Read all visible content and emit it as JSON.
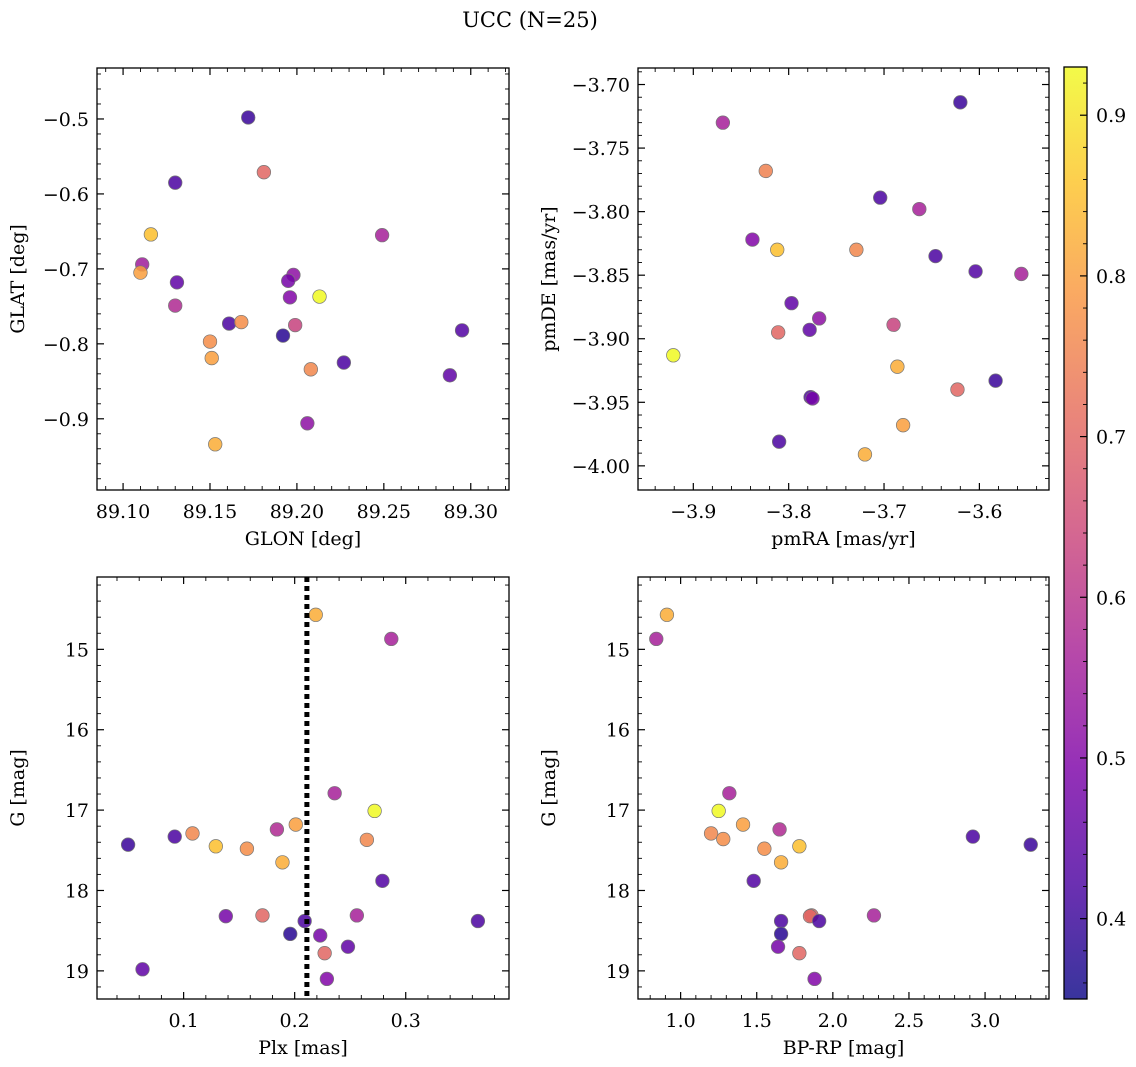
{
  "title": "UCC (N=25)",
  "colorbar": {
    "cmap": "plasma",
    "vmin": 0.35,
    "vmax": 0.93,
    "ticks": [
      0.4,
      0.5,
      0.6,
      0.7,
      0.8,
      0.9
    ],
    "tick_labels": [
      "0.4",
      "0.5",
      "0.6",
      "0.7",
      "0.8",
      "0.9"
    ]
  },
  "chart_data": [
    {
      "type": "scatter",
      "xlabel": "GLON [deg]",
      "ylabel": "GLAT [deg]",
      "xlim": [
        89.085,
        89.322
      ],
      "ylim": [
        -0.995,
        -0.432
      ],
      "xticks": [
        89.1,
        89.15,
        89.2,
        89.25,
        89.3
      ],
      "xtick_labels": [
        "89.10",
        "89.15",
        "89.20",
        "89.25",
        "89.30"
      ],
      "yticks": [
        -0.9,
        -0.8,
        -0.7,
        -0.6,
        -0.5
      ],
      "ytick_labels": [
        "−0.9",
        "−0.8",
        "−0.7",
        "−0.6",
        "−0.5"
      ],
      "x": [
        89.172,
        89.181,
        89.13,
        89.116,
        89.111,
        89.11,
        89.131,
        89.13,
        89.249,
        89.198,
        89.195,
        89.196,
        89.213,
        89.161,
        89.168,
        89.199,
        89.192,
        89.15,
        89.151,
        89.227,
        89.208,
        89.295,
        89.288,
        89.206,
        89.153
      ],
      "y": [
        -0.498,
        -0.571,
        -0.585,
        -0.654,
        -0.694,
        -0.705,
        -0.718,
        -0.749,
        -0.655,
        -0.708,
        -0.716,
        -0.738,
        -0.737,
        -0.773,
        -0.771,
        -0.775,
        -0.789,
        -0.797,
        -0.819,
        -0.825,
        -0.834,
        -0.782,
        -0.842,
        -0.906,
        -0.934
      ],
      "c": [
        0.4,
        0.7,
        0.42,
        0.85,
        0.55,
        0.8,
        0.45,
        0.58,
        0.56,
        0.52,
        0.48,
        0.5,
        0.93,
        0.42,
        0.77,
        0.63,
        0.38,
        0.77,
        0.8,
        0.42,
        0.76,
        0.43,
        0.45,
        0.52,
        0.82
      ]
    },
    {
      "type": "scatter",
      "xlabel": "pmRA [mas/yr]",
      "ylabel": "pmDE [mas/yr]",
      "xlim": [
        -3.958,
        -3.527
      ],
      "ylim": [
        -4.019,
        -3.687
      ],
      "xticks": [
        -3.9,
        -3.8,
        -3.7,
        -3.6
      ],
      "xtick_labels": [
        "−3.9",
        "−3.8",
        "−3.7",
        "−3.6"
      ],
      "yticks": [
        -4.0,
        -3.95,
        -3.9,
        -3.85,
        -3.8,
        -3.75,
        -3.7
      ],
      "ytick_labels": [
        "−4.00",
        "−3.95",
        "−3.90",
        "−3.85",
        "−3.80",
        "−3.75",
        "−3.70"
      ],
      "x": [
        -3.62,
        -3.869,
        -3.824,
        -3.704,
        -3.663,
        -3.838,
        -3.812,
        -3.729,
        -3.646,
        -3.604,
        -3.556,
        -3.797,
        -3.768,
        -3.811,
        -3.778,
        -3.69,
        -3.921,
        -3.686,
        -3.583,
        -3.623,
        -3.777,
        -3.775,
        -3.68,
        -3.81,
        -3.72
      ],
      "y": [
        -3.714,
        -3.73,
        -3.768,
        -3.789,
        -3.798,
        -3.822,
        -3.83,
        -3.83,
        -3.835,
        -3.847,
        -3.849,
        -3.872,
        -3.884,
        -3.895,
        -3.893,
        -3.889,
        -3.913,
        -3.922,
        -3.933,
        -3.94,
        -3.946,
        -3.947,
        -3.968,
        -3.981,
        -3.991
      ],
      "c": [
        0.4,
        0.56,
        0.75,
        0.42,
        0.56,
        0.5,
        0.85,
        0.76,
        0.42,
        0.43,
        0.56,
        0.45,
        0.52,
        0.7,
        0.45,
        0.63,
        0.93,
        0.82,
        0.4,
        0.7,
        0.42,
        0.48,
        0.8,
        0.42,
        0.82
      ]
    },
    {
      "type": "scatter",
      "xlabel": "Plx [mas]",
      "ylabel": "G [mag]",
      "xlim": [
        0.022,
        0.393
      ],
      "ylim": [
        19.35,
        14.1
      ],
      "invert_y": true,
      "xticks": [
        0.1,
        0.2,
        0.3
      ],
      "xtick_labels": [
        "0.1",
        "0.2",
        "0.3"
      ],
      "yticks": [
        15,
        16,
        17,
        18,
        19
      ],
      "ytick_labels": [
        "15",
        "16",
        "17",
        "18",
        "19"
      ],
      "vline": {
        "x": 0.211,
        "style": "dotted",
        "color": "#000000"
      },
      "x": [
        0.219,
        0.287,
        0.236,
        0.272,
        0.201,
        0.184,
        0.108,
        0.092,
        0.129,
        0.157,
        0.05,
        0.265,
        0.189,
        0.279,
        0.138,
        0.171,
        0.209,
        0.256,
        0.196,
        0.223,
        0.248,
        0.227,
        0.365,
        0.063,
        0.229
      ],
      "y": [
        14.57,
        14.87,
        16.79,
        17.01,
        17.18,
        17.24,
        17.29,
        17.33,
        17.45,
        17.48,
        17.43,
        17.37,
        17.65,
        17.88,
        18.32,
        18.31,
        18.38,
        18.31,
        18.54,
        18.56,
        18.7,
        18.78,
        18.38,
        18.98,
        19.1
      ],
      "c": [
        0.82,
        0.56,
        0.56,
        0.93,
        0.8,
        0.58,
        0.76,
        0.42,
        0.85,
        0.77,
        0.4,
        0.76,
        0.82,
        0.43,
        0.48,
        0.7,
        0.42,
        0.56,
        0.38,
        0.48,
        0.45,
        0.7,
        0.42,
        0.45,
        0.5
      ]
    },
    {
      "type": "scatter",
      "xlabel": "BP-RP [mag]",
      "ylabel": "G [mag]",
      "xlim": [
        0.72,
        3.42
      ],
      "ylim": [
        19.35,
        14.1
      ],
      "invert_y": true,
      "xticks": [
        1.0,
        1.5,
        2.0,
        2.5,
        3.0
      ],
      "xtick_labels": [
        "1.0",
        "1.5",
        "2.0",
        "2.5",
        "3.0"
      ],
      "yticks": [
        15,
        16,
        17,
        18,
        19
      ],
      "ytick_labels": [
        "15",
        "16",
        "17",
        "18",
        "19"
      ],
      "x": [
        0.91,
        0.84,
        1.32,
        1.25,
        1.41,
        1.65,
        1.2,
        1.78,
        1.28,
        1.55,
        1.66,
        2.92,
        3.3,
        1.48,
        1.86,
        1.85,
        2.27,
        1.66,
        1.66,
        1.91,
        1.64,
        1.78,
        1.88
      ],
      "y": [
        14.57,
        14.87,
        16.79,
        17.01,
        17.18,
        17.24,
        17.29,
        17.45,
        17.36,
        17.48,
        17.65,
        17.33,
        17.43,
        17.88,
        18.31,
        18.32,
        18.31,
        18.38,
        18.54,
        18.38,
        18.7,
        18.78,
        19.1
      ],
      "c": [
        0.82,
        0.56,
        0.56,
        0.93,
        0.8,
        0.58,
        0.76,
        0.85,
        0.77,
        0.77,
        0.82,
        0.42,
        0.4,
        0.43,
        0.7,
        0.7,
        0.56,
        0.42,
        0.38,
        0.42,
        0.48,
        0.7,
        0.5
      ]
    }
  ]
}
